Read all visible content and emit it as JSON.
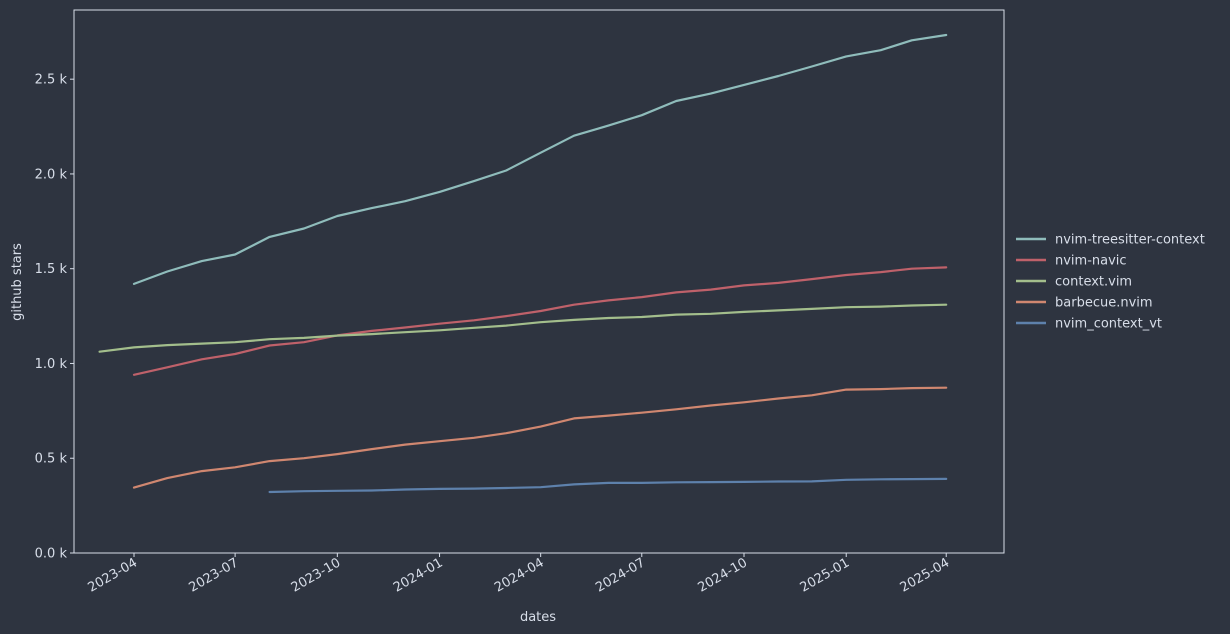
{
  "chart_data": {
    "type": "line",
    "title": "",
    "xlabel": "dates",
    "ylabel": "github stars",
    "x_ticks": [
      "2023-04",
      "2023-07",
      "2023-10",
      "2024-01",
      "2024-04",
      "2024-07",
      "2024-10",
      "2025-01",
      "2025-04"
    ],
    "y_ticks": [
      {
        "value": 0,
        "label": "0.0 k"
      },
      {
        "value": 500,
        "label": "0.5 k"
      },
      {
        "value": 1000,
        "label": "1.0 k"
      },
      {
        "value": 1500,
        "label": "1.5 k"
      },
      {
        "value": 2000,
        "label": "2.0 k"
      },
      {
        "value": 2500,
        "label": "2.5 k"
      }
    ],
    "xlim": [
      "2023-02-06",
      "2025-05-23"
    ],
    "ylim": [
      0,
      2865
    ],
    "grid": false,
    "legend_position": "right",
    "background": "#2e3440",
    "text_color": "#d8dee9",
    "series": [
      {
        "name": "nvim-treesitter-context",
        "color": "#8fbcbb",
        "points": [
          [
            "2023-04-01",
            1420
          ],
          [
            "2023-05-01",
            1485
          ],
          [
            "2023-06-01",
            1540
          ],
          [
            "2023-07-01",
            1575
          ],
          [
            "2023-08-01",
            1668
          ],
          [
            "2023-09-01",
            1712
          ],
          [
            "2023-10-01",
            1778
          ],
          [
            "2023-11-01",
            1820
          ],
          [
            "2023-12-01",
            1856
          ],
          [
            "2024-01-01",
            1905
          ],
          [
            "2024-02-01",
            1962
          ],
          [
            "2024-03-01",
            2018
          ],
          [
            "2024-04-01",
            2112
          ],
          [
            "2024-05-01",
            2202
          ],
          [
            "2024-06-01",
            2255
          ],
          [
            "2024-07-01",
            2310
          ],
          [
            "2024-08-01",
            2385
          ],
          [
            "2024-09-01",
            2424
          ],
          [
            "2024-10-01",
            2470
          ],
          [
            "2024-11-01",
            2517
          ],
          [
            "2024-12-01",
            2567
          ],
          [
            "2025-01-01",
            2620
          ],
          [
            "2025-02-01",
            2653
          ],
          [
            "2025-03-01",
            2705
          ],
          [
            "2025-04-01",
            2733
          ]
        ]
      },
      {
        "name": "nvim-navic",
        "color": "#bf616a",
        "points": [
          [
            "2023-04-01",
            940
          ],
          [
            "2023-05-01",
            980
          ],
          [
            "2023-06-01",
            1022
          ],
          [
            "2023-07-01",
            1050
          ],
          [
            "2023-08-01",
            1095
          ],
          [
            "2023-09-01",
            1112
          ],
          [
            "2023-10-01",
            1148
          ],
          [
            "2023-11-01",
            1172
          ],
          [
            "2023-12-01",
            1190
          ],
          [
            "2024-01-01",
            1210
          ],
          [
            "2024-02-01",
            1228
          ],
          [
            "2024-03-01",
            1250
          ],
          [
            "2024-04-01",
            1277
          ],
          [
            "2024-05-01",
            1310
          ],
          [
            "2024-06-01",
            1333
          ],
          [
            "2024-07-01",
            1350
          ],
          [
            "2024-08-01",
            1375
          ],
          [
            "2024-09-01",
            1390
          ],
          [
            "2024-10-01",
            1412
          ],
          [
            "2024-11-01",
            1425
          ],
          [
            "2024-12-01",
            1445
          ],
          [
            "2025-01-01",
            1467
          ],
          [
            "2025-02-01",
            1482
          ],
          [
            "2025-03-01",
            1500
          ],
          [
            "2025-04-01",
            1507
          ]
        ]
      },
      {
        "name": "context.vim",
        "color": "#a3be8c",
        "points": [
          [
            "2023-03-01",
            1062
          ],
          [
            "2023-04-01",
            1085
          ],
          [
            "2023-05-01",
            1097
          ],
          [
            "2023-06-01",
            1105
          ],
          [
            "2023-07-01",
            1112
          ],
          [
            "2023-08-01",
            1128
          ],
          [
            "2023-09-01",
            1135
          ],
          [
            "2023-10-01",
            1147
          ],
          [
            "2023-11-01",
            1155
          ],
          [
            "2023-12-01",
            1165
          ],
          [
            "2024-01-01",
            1175
          ],
          [
            "2024-02-01",
            1188
          ],
          [
            "2024-03-01",
            1200
          ],
          [
            "2024-04-01",
            1218
          ],
          [
            "2024-05-01",
            1230
          ],
          [
            "2024-06-01",
            1240
          ],
          [
            "2024-07-01",
            1245
          ],
          [
            "2024-08-01",
            1258
          ],
          [
            "2024-09-01",
            1262
          ],
          [
            "2024-10-01",
            1272
          ],
          [
            "2024-11-01",
            1280
          ],
          [
            "2024-12-01",
            1288
          ],
          [
            "2025-01-01",
            1297
          ],
          [
            "2025-02-01",
            1300
          ],
          [
            "2025-03-01",
            1306
          ],
          [
            "2025-04-01",
            1310
          ]
        ]
      },
      {
        "name": "barbecue.nvim",
        "color": "#d08770",
        "points": [
          [
            "2023-04-01",
            345
          ],
          [
            "2023-05-01",
            395
          ],
          [
            "2023-06-01",
            432
          ],
          [
            "2023-07-01",
            452
          ],
          [
            "2023-08-01",
            485
          ],
          [
            "2023-09-01",
            500
          ],
          [
            "2023-10-01",
            522
          ],
          [
            "2023-11-01",
            548
          ],
          [
            "2023-12-01",
            572
          ],
          [
            "2024-01-01",
            590
          ],
          [
            "2024-02-01",
            608
          ],
          [
            "2024-03-01",
            632
          ],
          [
            "2024-04-01",
            667
          ],
          [
            "2024-05-01",
            710
          ],
          [
            "2024-06-01",
            725
          ],
          [
            "2024-07-01",
            740
          ],
          [
            "2024-08-01",
            758
          ],
          [
            "2024-09-01",
            778
          ],
          [
            "2024-10-01",
            795
          ],
          [
            "2024-11-01",
            815
          ],
          [
            "2024-12-01",
            832
          ],
          [
            "2025-01-01",
            862
          ],
          [
            "2025-02-01",
            865
          ],
          [
            "2025-03-01",
            870
          ],
          [
            "2025-04-01",
            872
          ]
        ]
      },
      {
        "name": "nvim_context_vt",
        "color": "#5e81ac",
        "points": [
          [
            "2023-08-01",
            322
          ],
          [
            "2023-09-01",
            326
          ],
          [
            "2023-10-01",
            328
          ],
          [
            "2023-11-01",
            330
          ],
          [
            "2023-12-01",
            335
          ],
          [
            "2024-01-01",
            338
          ],
          [
            "2024-02-01",
            340
          ],
          [
            "2024-03-01",
            343
          ],
          [
            "2024-04-01",
            347
          ],
          [
            "2024-05-01",
            362
          ],
          [
            "2024-06-01",
            370
          ],
          [
            "2024-07-01",
            370
          ],
          [
            "2024-08-01",
            373
          ],
          [
            "2024-09-01",
            374
          ],
          [
            "2024-10-01",
            375
          ],
          [
            "2024-11-01",
            377
          ],
          [
            "2024-12-01",
            378
          ],
          [
            "2025-01-01",
            386
          ],
          [
            "2025-02-01",
            389
          ],
          [
            "2025-03-01",
            390
          ],
          [
            "2025-04-01",
            391
          ]
        ]
      }
    ]
  }
}
